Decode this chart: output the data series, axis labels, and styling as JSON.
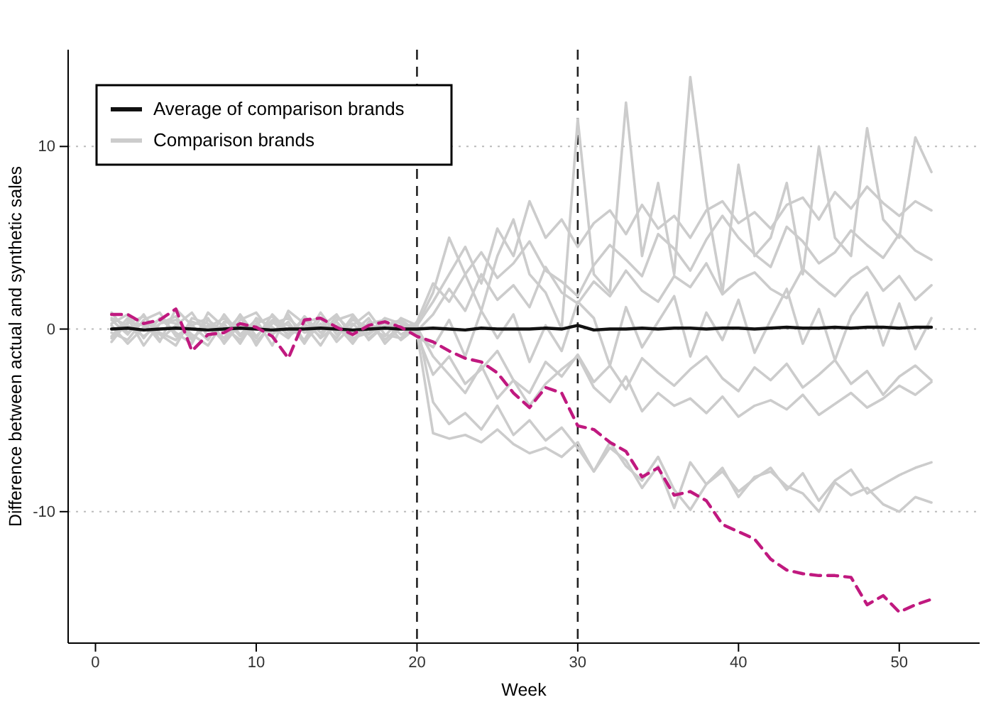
{
  "chart_data": {
    "type": "line",
    "xlabel": "Week",
    "ylabel": "Difference between actual and synthetic sales",
    "x": [
      1,
      2,
      3,
      4,
      5,
      6,
      7,
      8,
      9,
      10,
      11,
      12,
      13,
      14,
      15,
      16,
      17,
      18,
      19,
      20,
      21,
      22,
      23,
      24,
      25,
      26,
      27,
      28,
      29,
      30,
      31,
      32,
      33,
      34,
      35,
      36,
      37,
      38,
      39,
      40,
      41,
      42,
      43,
      44,
      45,
      46,
      47,
      48,
      49,
      50,
      51,
      52
    ],
    "xlim": [
      -1.7,
      55
    ],
    "xticks": [
      0,
      10,
      20,
      30,
      40,
      50
    ],
    "ylim": [
      -17.2,
      15.3
    ],
    "yticks": [
      -10,
      0,
      10
    ],
    "grid": "y",
    "legend": "top left",
    "line_style": "solid",
    "ref_lines": [
      {
        "axis": "x",
        "value": 20,
        "color": "#222222",
        "line_style": "dashed"
      },
      {
        "axis": "x",
        "value": 30,
        "color": "#222222",
        "line_style": "dashed"
      }
    ],
    "series": [
      {
        "name": "Comparison brands",
        "color": "#cccccc",
        "values": [
          0.5,
          -0.3,
          0.8,
          -0.6,
          0.2,
          0.9,
          -0.4,
          0.3,
          -0.8,
          0.6,
          0.1,
          -0.5,
          0.7,
          -0.2,
          0.4,
          -0.6,
          0.3,
          0.5,
          -0.3,
          0.2,
          2,
          5,
          3,
          1,
          4,
          6,
          3,
          2,
          0,
          11.5,
          3,
          2,
          12.4,
          4,
          8,
          3,
          13.8,
          7,
          2,
          9,
          4,
          5,
          8,
          3,
          10,
          5,
          4,
          11,
          6,
          5,
          10.5,
          8.6
        ]
      },
      {
        "color": "#cccccc",
        "values": [
          -0.4,
          0.6,
          -0.9,
          0.3,
          0.7,
          -0.5,
          0.2,
          -0.7,
          0.5,
          0.9,
          -0.3,
          0.4,
          -0.8,
          0.6,
          -0.1,
          0.3,
          -0.5,
          0.2,
          0.4,
          -0.2,
          -5.7,
          -6,
          -5.8,
          -6.2,
          -5.5,
          -6.3,
          -6.8,
          -6.5,
          -7,
          -6.2,
          -7.8,
          -6.5,
          -7.2,
          -8.7,
          -7.5,
          -9.8,
          -7.3,
          -8.5,
          -7.8,
          -8.9,
          -8.2,
          -7.6,
          -8.8,
          -7.9,
          -9.4,
          -8.3,
          -7.7,
          -9,
          -8.5,
          -8,
          -7.6,
          -7.3
        ]
      },
      {
        "color": "#cccccc",
        "values": [
          0.9,
          -0.2,
          0.4,
          -0.7,
          1.1,
          0.2,
          -0.6,
          0.8,
          -0.3,
          0.5,
          -0.9,
          1,
          0.3,
          -0.4,
          0.7,
          -0.2,
          0.6,
          -0.8,
          0.1,
          0.3,
          -4,
          -5.2,
          -4.6,
          -5.5,
          -4.2,
          -5.8,
          -5,
          -6.1,
          -5.4,
          -6.5,
          -7.8,
          -6.2,
          -7.5,
          -8.3,
          -7,
          -8.8,
          -9.9,
          -8.5,
          -7.6,
          -9.2,
          -8.1,
          -7.8,
          -8.6,
          -9,
          -10,
          -8.4,
          -9.1,
          -8.7,
          -9.6,
          -10,
          -9.2,
          -9.5
        ]
      },
      {
        "color": "#cccccc",
        "values": [
          -0.7,
          0.4,
          0.2,
          -0.3,
          -0.9,
          0.6,
          0.3,
          -0.5,
          0.8,
          -0.4,
          0.5,
          0.2,
          -0.6,
          0.9,
          -0.3,
          0.5,
          0.1,
          -0.4,
          0.6,
          0.2,
          1.5,
          3,
          4.5,
          2.5,
          5.5,
          4,
          7,
          5,
          6,
          4.5,
          5.8,
          6.5,
          5.2,
          6.8,
          5.5,
          6.2,
          5,
          6.5,
          7,
          5.8,
          6.4,
          5.5,
          6.8,
          7.2,
          6,
          7.5,
          6.6,
          7.8,
          6.9,
          6.2,
          7,
          6.5
        ]
      },
      {
        "color": "#cccccc",
        "values": [
          0.3,
          0.8,
          -0.5,
          0.6,
          -0.2,
          -0.8,
          0.9,
          0.1,
          -0.6,
          0.3,
          0.7,
          -0.4,
          0.2,
          -0.9,
          0.5,
          0.8,
          -0.3,
          0.4,
          -0.6,
          0.1,
          -1.5,
          -2.5,
          -3.5,
          -2,
          -3.8,
          -2.8,
          -4.2,
          -3,
          -2.2,
          -1.5,
          -3.2,
          -4,
          -2.6,
          -4.5,
          -3.5,
          -4.2,
          -3.8,
          -4.6,
          -3.7,
          -4.8,
          -4.2,
          -3.9,
          -4.4,
          -3.6,
          -4.7,
          -4.1,
          -3.5,
          -4.3,
          -3.8,
          -3.1,
          -3.6,
          -2.9
        ]
      },
      {
        "color": "#cccccc",
        "values": [
          -0.2,
          -0.6,
          0.5,
          0.9,
          -0.4,
          0.2,
          0.6,
          -0.8,
          0.3,
          -0.5,
          0.8,
          -0.1,
          0.4,
          0.6,
          -0.7,
          0.2,
          0.9,
          -0.3,
          -0.5,
          0.4,
          2.5,
          1.5,
          3,
          4.2,
          2.8,
          3.6,
          4.8,
          3.2,
          2.6,
          1.8,
          3.5,
          4.6,
          3.8,
          2.9,
          5.2,
          4.4,
          3.2,
          4.9,
          6.2,
          5,
          4.1,
          3.4,
          5.6,
          4.8,
          3.6,
          4.2,
          5.4,
          4.6,
          3.9,
          5.2,
          4.3,
          3.8
        ]
      },
      {
        "color": "#cccccc",
        "values": [
          0.6,
          0.2,
          -0.4,
          0.3,
          0.5,
          -0.3,
          -0.9,
          0.4,
          0.2,
          -0.7,
          0.3,
          0.6,
          -0.2,
          0.1,
          0.8,
          -0.5,
          -0.2,
          0.6,
          0.3,
          -0.4,
          -1,
          0.5,
          -1.5,
          1,
          -0.5,
          0.8,
          -1.8,
          0.2,
          -1.2,
          1.5,
          0.6,
          -2,
          1.2,
          -1,
          0.4,
          1.8,
          -1.5,
          0.9,
          -0.6,
          1.6,
          -1.3,
          0.5,
          2.2,
          -0.8,
          1.1,
          -1.7,
          0.7,
          2,
          -0.9,
          1.4,
          -1.1,
          0.6
        ]
      },
      {
        "color": "#cccccc",
        "values": [
          -0.5,
          0.3,
          0.7,
          -0.2,
          -0.6,
          0.4,
          0.1,
          0.6,
          -0.4,
          0.2,
          -0.3,
          0.8,
          -0.7,
          0.3,
          -0.5,
          0.7,
          -0.6,
          0.2,
          0.5,
          -0.1,
          0.8,
          2.2,
          1,
          3,
          1.6,
          2.4,
          1.2,
          3.4,
          2,
          1.4,
          2.6,
          1.8,
          3.2,
          2.1,
          1.5,
          2.9,
          2.3,
          3.6,
          1.9,
          2.7,
          3.1,
          2.2,
          1.7,
          3.3,
          2.5,
          1.8,
          2.8,
          3.4,
          2.1,
          2.9,
          1.6,
          2.4
        ]
      },
      {
        "color": "#cccccc",
        "values": [
          0.2,
          -0.8,
          0.1,
          0.5,
          0.3,
          -0.6,
          0.5,
          -0.2,
          0.7,
          -0.9,
          0.4,
          -0.3,
          0.6,
          -0.5,
          0.2,
          -0.8,
          0.4,
          -0.6,
          0.2,
          -0.3,
          -2.5,
          -1.5,
          -3,
          -2.2,
          -1.2,
          -2.8,
          -3.5,
          -1.8,
          -2.6,
          -1.4,
          -2.9,
          -2,
          -3.3,
          -1.6,
          -2.4,
          -3.1,
          -2.2,
          -1.5,
          -2.7,
          -3.4,
          -2.1,
          -2.8,
          -1.9,
          -3.2,
          -2.5,
          -1.7,
          -3,
          -2.3,
          -3.6,
          -2.6,
          -2,
          -2.8
        ]
      },
      {
        "name": "Average of comparison brands",
        "color": "#111111",
        "values": [
          0,
          0.05,
          -0.05,
          0,
          0.05,
          0,
          -0.05,
          0,
          0.05,
          0,
          -0.05,
          0,
          0,
          0.05,
          0,
          -0.05,
          0,
          0.05,
          0,
          0,
          0.05,
          0,
          -0.05,
          0.05,
          0,
          0,
          0,
          0.05,
          0,
          0.2,
          -0.05,
          0,
          0,
          0.05,
          0,
          0.05,
          0.05,
          0,
          0.05,
          0.05,
          0,
          0.05,
          0.1,
          0.05,
          0.05,
          0.1,
          0.05,
          0.1,
          0.1,
          0.05,
          0.1,
          0.1
        ]
      },
      {
        "color": "#c0197f",
        "line_style": "dashed",
        "values": [
          0.8,
          0.8,
          0.3,
          0.5,
          1.1,
          -1.2,
          -0.3,
          -0.2,
          0.3,
          0.1,
          -0.4,
          -1.6,
          0.5,
          0.6,
          0.1,
          -0.3,
          0.2,
          0.4,
          0.1,
          -0.4,
          -0.7,
          -1.2,
          -1.6,
          -1.8,
          -2.4,
          -3.5,
          -4.3,
          -3.2,
          -3.5,
          -5.3,
          -5.5,
          -6.2,
          -6.7,
          -8.1,
          -7.6,
          -9.1,
          -8.9,
          -9.4,
          -10.7,
          -11.1,
          -11.5,
          -12.6,
          -13.2,
          -13.4,
          -13.5,
          -13.5,
          -13.6,
          -15.1,
          -14.6,
          -15.5,
          -15.1,
          -14.8
        ]
      }
    ]
  }
}
